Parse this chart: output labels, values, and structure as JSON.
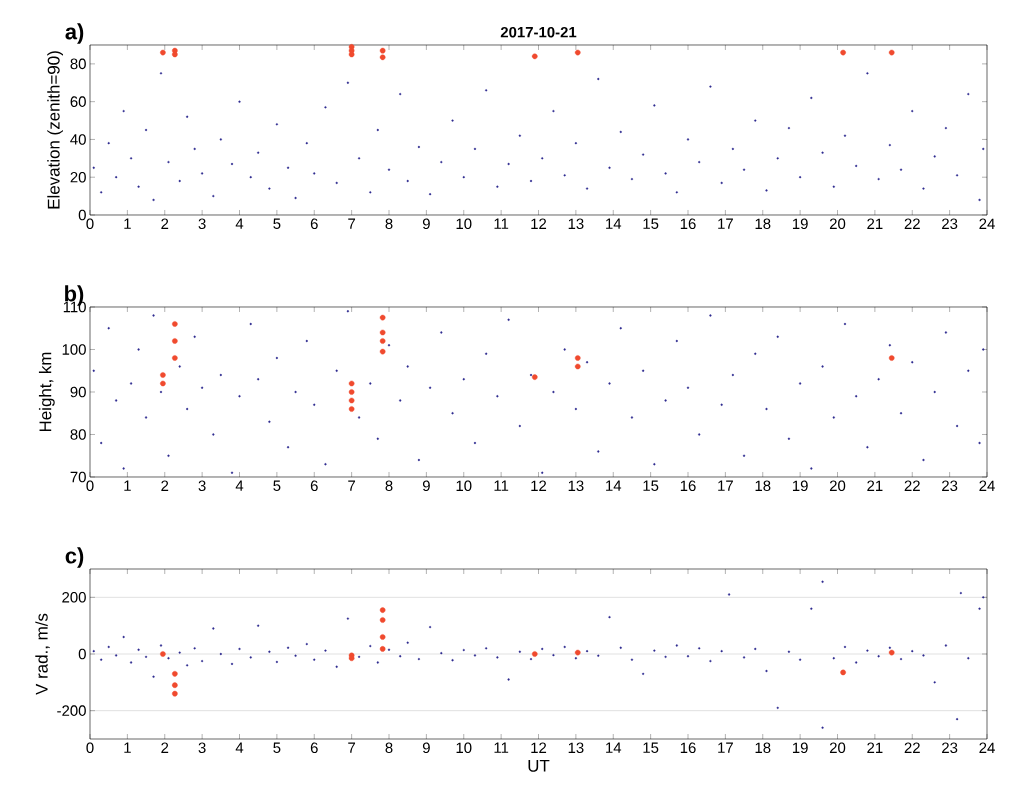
{
  "chart_data": [
    {
      "type": "scatter",
      "title": "2017-10-21",
      "ylabel": "Elevation (zenith=90)",
      "annotations": [
        "a)"
      ],
      "xlim": [
        0,
        24
      ],
      "xticks": [
        0,
        1,
        2,
        3,
        4,
        5,
        6,
        7,
        8,
        9,
        10,
        11,
        12,
        13,
        14,
        15,
        16,
        17,
        18,
        19,
        20,
        21,
        22,
        23,
        24
      ],
      "ylim": [
        0,
        90
      ],
      "yticks": [
        0,
        20,
        40,
        60,
        80
      ],
      "grid": false,
      "marker": "circle",
      "series": [
        {
          "color": "#2e2a8f",
          "x": [
            0.1,
            0.3,
            0.5,
            0.7,
            0.9,
            1.1,
            1.3,
            1.5,
            1.7,
            1.9,
            2.1,
            2.4,
            2.6,
            2.8,
            3.0,
            3.3,
            3.5,
            3.8,
            4.0,
            4.3,
            4.5,
            4.8,
            5.0,
            5.3,
            5.5,
            5.8,
            6.0,
            6.3,
            6.6,
            6.9,
            7.2,
            7.5,
            7.7,
            8.0,
            8.3,
            8.5,
            8.8,
            9.1,
            9.4,
            9.7,
            10.0,
            10.3,
            10.6,
            10.9,
            11.2,
            11.5,
            11.8,
            12.1,
            12.4,
            12.7,
            13.0,
            13.3,
            13.6,
            13.9,
            14.2,
            14.5,
            14.8,
            15.1,
            15.4,
            15.7,
            16.0,
            16.3,
            16.6,
            16.9,
            17.2,
            17.5,
            17.8,
            18.1,
            18.4,
            18.7,
            19.0,
            19.3,
            19.6,
            19.9,
            20.2,
            20.5,
            20.8,
            21.1,
            21.4,
            21.7,
            22.0,
            22.3,
            22.6,
            22.9,
            23.2,
            23.5,
            23.8,
            23.9
          ],
          "values": [
            25,
            12,
            38,
            20,
            55,
            30,
            15,
            45,
            8,
            75,
            28,
            18,
            52,
            35,
            22,
            10,
            40,
            27,
            60,
            20,
            33,
            14,
            48,
            25,
            9,
            38,
            22,
            57,
            17,
            70,
            30,
            12,
            45,
            24,
            64,
            18,
            36,
            11,
            28,
            50,
            20,
            35,
            66,
            15,
            27,
            42,
            18,
            30,
            55,
            21,
            38,
            14,
            72,
            25,
            44,
            19,
            32,
            58,
            22,
            12,
            40,
            28,
            68,
            17,
            35,
            24,
            50,
            13,
            30,
            46,
            20,
            62,
            33,
            15,
            42,
            26,
            75,
            19,
            37,
            24,
            55,
            14,
            31,
            46,
            21,
            64,
            8,
            35
          ]
        },
        {
          "color": "#f04a2e",
          "x": [
            1.95,
            2.27,
            2.27,
            7.0,
            7.0,
            7.0,
            7.83,
            7.83,
            11.9,
            13.05,
            20.15,
            21.45
          ],
          "values": [
            86,
            87,
            85,
            89,
            87,
            85,
            87,
            83.5,
            84,
            86,
            86,
            86
          ]
        }
      ]
    },
    {
      "type": "scatter",
      "ylabel": "Height, km",
      "annotations": [
        "b)"
      ],
      "xlim": [
        0,
        24
      ],
      "xticks": [
        0,
        1,
        2,
        3,
        4,
        5,
        6,
        7,
        8,
        9,
        10,
        11,
        12,
        13,
        14,
        15,
        16,
        17,
        18,
        19,
        20,
        21,
        22,
        23,
        24
      ],
      "ylim": [
        70,
        110
      ],
      "yticks": [
        70,
        80,
        90,
        100,
        110
      ],
      "grid": false,
      "marker": "circle",
      "series": [
        {
          "color": "#2e2a8f",
          "x": [
            0.1,
            0.3,
            0.5,
            0.7,
            0.9,
            1.1,
            1.3,
            1.5,
            1.7,
            1.9,
            2.1,
            2.4,
            2.6,
            2.8,
            3.0,
            3.3,
            3.5,
            3.8,
            4.0,
            4.3,
            4.5,
            4.8,
            5.0,
            5.3,
            5.5,
            5.8,
            6.0,
            6.3,
            6.6,
            6.9,
            7.2,
            7.5,
            7.7,
            8.0,
            8.3,
            8.5,
            8.8,
            9.1,
            9.4,
            9.7,
            10.0,
            10.3,
            10.6,
            10.9,
            11.2,
            11.5,
            11.8,
            12.1,
            12.4,
            12.7,
            13.0,
            13.3,
            13.6,
            13.9,
            14.2,
            14.5,
            14.8,
            15.1,
            15.4,
            15.7,
            16.0,
            16.3,
            16.6,
            16.9,
            17.2,
            17.5,
            17.8,
            18.1,
            18.4,
            18.7,
            19.0,
            19.3,
            19.6,
            19.9,
            20.2,
            20.5,
            20.8,
            21.1,
            21.4,
            21.7,
            22.0,
            22.3,
            22.6,
            22.9,
            23.2,
            23.5,
            23.8,
            23.9
          ],
          "values": [
            95,
            78,
            105,
            88,
            72,
            92,
            100,
            84,
            108,
            90,
            75,
            96,
            86,
            103,
            91,
            80,
            94,
            71,
            89,
            106,
            93,
            83,
            98,
            77,
            90,
            102,
            87,
            73,
            95,
            109,
            84,
            92,
            79,
            101,
            88,
            96,
            74,
            91,
            104,
            85,
            93,
            78,
            99,
            89,
            107,
            82,
            94,
            71,
            90,
            100,
            86,
            97,
            76,
            92,
            105,
            84,
            95,
            73,
            88,
            102,
            91,
            80,
            108,
            87,
            94,
            75,
            99,
            86,
            103,
            79,
            92,
            72,
            96,
            84,
            106,
            89,
            77,
            93,
            101,
            85,
            97,
            74,
            90,
            104,
            82,
            95,
            78,
            100
          ]
        },
        {
          "color": "#f04a2e",
          "x": [
            1.95,
            1.95,
            2.27,
            2.27,
            2.27,
            7.0,
            7.0,
            7.0,
            7.0,
            7.83,
            7.83,
            7.83,
            7.83,
            11.9,
            13.05,
            13.05,
            21.45
          ],
          "values": [
            94,
            92,
            106,
            102,
            98,
            92,
            90,
            88,
            86,
            107.5,
            104,
            102,
            99.5,
            93.5,
            98,
            96,
            98
          ]
        }
      ]
    },
    {
      "type": "scatter",
      "xlabel": "UT",
      "ylabel": "V rad., m/s",
      "annotations": [
        "c)"
      ],
      "xlim": [
        0,
        24
      ],
      "xticks": [
        0,
        1,
        2,
        3,
        4,
        5,
        6,
        7,
        8,
        9,
        10,
        11,
        12,
        13,
        14,
        15,
        16,
        17,
        18,
        19,
        20,
        21,
        22,
        23,
        24
      ],
      "ylim": [
        -300,
        300
      ],
      "yticks": [
        -200,
        0,
        200
      ],
      "grid": "y",
      "marker": "circle",
      "series": [
        {
          "color": "#2e2a8f",
          "x": [
            0.1,
            0.3,
            0.5,
            0.7,
            0.9,
            1.1,
            1.3,
            1.5,
            1.7,
            1.9,
            2.1,
            2.4,
            2.6,
            2.8,
            3.0,
            3.3,
            3.5,
            3.8,
            4.0,
            4.3,
            4.5,
            4.8,
            5.0,
            5.3,
            5.5,
            5.8,
            6.0,
            6.3,
            6.6,
            6.9,
            7.2,
            7.5,
            7.7,
            8.0,
            8.3,
            8.5,
            8.8,
            9.1,
            9.4,
            9.7,
            10.0,
            10.3,
            10.6,
            10.9,
            11.2,
            11.5,
            11.8,
            12.1,
            12.4,
            12.7,
            13.0,
            13.3,
            13.6,
            13.9,
            14.2,
            14.5,
            14.8,
            15.1,
            15.4,
            15.7,
            16.0,
            16.3,
            16.6,
            16.9,
            17.1,
            17.5,
            17.8,
            18.1,
            18.4,
            18.7,
            19.0,
            19.3,
            19.6,
            19.6,
            19.9,
            20.2,
            20.5,
            20.8,
            21.1,
            21.4,
            21.7,
            22.0,
            22.3,
            22.6,
            22.9,
            23.2,
            23.3,
            23.5,
            23.8,
            23.9
          ],
          "values": [
            10,
            -20,
            25,
            -5,
            60,
            -30,
            15,
            -10,
            -80,
            30,
            -15,
            5,
            -40,
            20,
            -25,
            90,
            0,
            -35,
            18,
            -12,
            100,
            8,
            -28,
            22,
            -6,
            35,
            -20,
            12,
            -45,
            125,
            -10,
            28,
            -30,
            15,
            -8,
            40,
            -18,
            95,
            3,
            -22,
            14,
            -5,
            20,
            -12,
            -90,
            8,
            -18,
            18,
            -4,
            25,
            -15,
            10,
            -6,
            130,
            22,
            -20,
            -70,
            12,
            -10,
            30,
            -8,
            20,
            -25,
            10,
            210,
            -12,
            18,
            -60,
            -190,
            8,
            -20,
            160,
            255,
            -260,
            -15,
            25,
            -30,
            12,
            -8,
            22,
            -18,
            10,
            -5,
            -100,
            30,
            -230,
            215,
            -15,
            160,
            200
          ]
        },
        {
          "color": "#f04a2e",
          "x": [
            1.95,
            2.27,
            2.27,
            2.27,
            7.0,
            7.0,
            7.83,
            7.83,
            7.83,
            7.83,
            11.9,
            13.05,
            20.15,
            21.45
          ],
          "values": [
            0,
            -70,
            -110,
            -140,
            -5,
            -15,
            155,
            120,
            60,
            18,
            0,
            5,
            -65,
            5
          ]
        }
      ]
    }
  ]
}
